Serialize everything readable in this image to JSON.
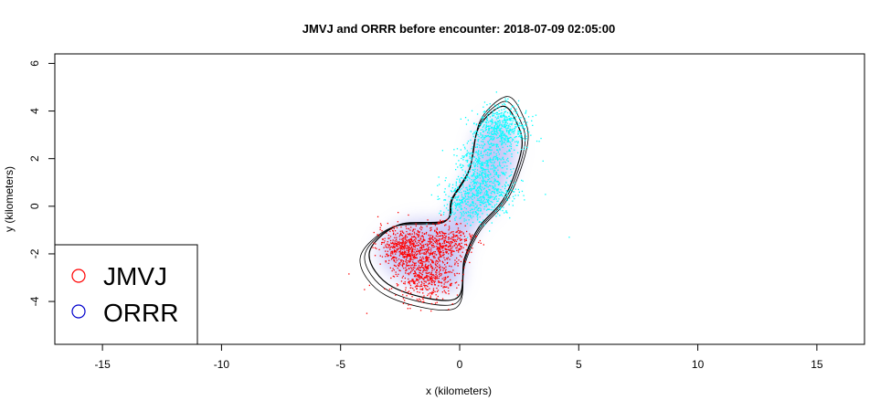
{
  "chart_data": {
    "type": "scatter",
    "title": "JMVJ and ORRR before encounter: 2018-07-09 02:05:00",
    "xlabel": "x (kilometers)",
    "ylabel": "y (kilometers)",
    "xlim": [
      -17,
      17
    ],
    "ylim": [
      -5.8,
      6.4
    ],
    "x_ticks": [
      -15,
      -10,
      -5,
      0,
      5,
      10,
      15
    ],
    "y_ticks": [
      -4,
      -2,
      0,
      2,
      4,
      6
    ],
    "x_tick_labels": [
      "-15",
      "-10",
      "-5",
      "0",
      "5",
      "10",
      "15"
    ],
    "y_tick_labels": [
      "-4",
      "-2",
      "0",
      "2",
      "4",
      "6"
    ],
    "legend_position": "bottom-left",
    "series": [
      {
        "name": "JMVJ",
        "legend_color": "#ff0000",
        "point_color": "#ff0000",
        "clusters": [
          {
            "cx": -2.3,
            "cy": -1.75,
            "sx": 0.55,
            "sy": 0.45,
            "n": 520
          },
          {
            "cx": -1.4,
            "cy": -2.85,
            "sx": 0.6,
            "sy": 0.55,
            "n": 520
          },
          {
            "cx": -0.6,
            "cy": -1.5,
            "sx": 0.55,
            "sy": 0.4,
            "n": 380
          }
        ],
        "outliers": [
          [
            -4.0,
            -3.5
          ],
          [
            -3.9,
            -4.5
          ],
          [
            -1.2,
            -4.4
          ],
          [
            -0.3,
            -4.1
          ],
          [
            -3.6,
            -1.1
          ]
        ]
      },
      {
        "name": "ORRR",
        "legend_color": "#0000cc",
        "point_color": "#00ffff",
        "clusters": [
          {
            "cx": 1.8,
            "cy": 3.3,
            "sx": 0.55,
            "sy": 0.45,
            "n": 520
          },
          {
            "cx": 0.9,
            "cy": 1.7,
            "sx": 0.55,
            "sy": 0.55,
            "n": 420
          },
          {
            "cx": 0.4,
            "cy": 0.2,
            "sx": 0.6,
            "sy": 0.5,
            "n": 380
          },
          {
            "cx": 1.6,
            "cy": 0.6,
            "sx": 0.45,
            "sy": 0.4,
            "n": 160
          }
        ],
        "outliers": [
          [
            3.5,
            1.9
          ],
          [
            4.6,
            -1.3
          ],
          [
            3.6,
            0.5
          ],
          [
            -0.8,
            -0.2
          ]
        ]
      }
    ],
    "home_range": {
      "fill_color": "#9999ee",
      "contour_color": "#000000",
      "path_knots": [
        [
          2.4,
          3.5
        ],
        [
          2.6,
          2.4
        ],
        [
          1.9,
          0.4
        ],
        [
          0.8,
          -0.9
        ],
        [
          0.2,
          -2.2
        ],
        [
          -0.2,
          -3.9
        ],
        [
          -2.8,
          -3.4
        ],
        [
          -3.8,
          -2.0
        ],
        [
          -2.6,
          -0.8
        ],
        [
          -0.6,
          -0.6
        ],
        [
          -0.3,
          0.3
        ],
        [
          0.4,
          1.5
        ],
        [
          0.8,
          3.3
        ],
        [
          1.8,
          4.2
        ]
      ]
    }
  }
}
